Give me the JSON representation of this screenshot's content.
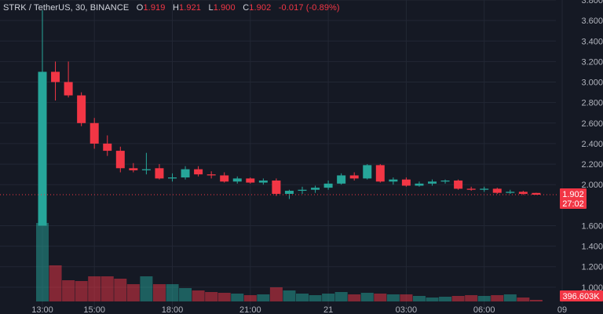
{
  "header": {
    "symbol": "STRK / TetherUS, 30, BINANCE",
    "o_label": "O",
    "o_val": "1.919",
    "h_label": "H",
    "h_val": "1.921",
    "l_label": "L",
    "l_val": "1.900",
    "c_label": "C",
    "c_val": "1.902",
    "change": "-0.017 (-0.89%)"
  },
  "badges": {
    "price": "1.902",
    "countdown": "27:02",
    "volume": "396.603K"
  },
  "colors": {
    "up": "#26a69a",
    "down": "#f23645",
    "bg": "#151924"
  },
  "chart_data": {
    "type": "candlestick",
    "ylim": [
      0.8,
      3.8
    ],
    "y_ticks": [
      "1.000",
      "1.200",
      "1.400",
      "1.600",
      "2.000",
      "2.200",
      "2.400",
      "2.600",
      "2.800",
      "3.000",
      "3.200",
      "3.400",
      "3.600",
      "3.800"
    ],
    "x_ticks": [
      {
        "label": "13:00",
        "index": 0
      },
      {
        "label": "15:00",
        "index": 4
      },
      {
        "label": "18:00",
        "index": 10
      },
      {
        "label": "21:00",
        "index": 16
      },
      {
        "label": "21",
        "index": 22
      },
      {
        "label": "03:00",
        "index": 28
      },
      {
        "label": "06:00",
        "index": 34
      },
      {
        "label": "09",
        "index": 40
      }
    ],
    "candles": [
      {
        "o": 1.6,
        "h": 3.7,
        "l": 1.6,
        "c": 3.1,
        "v": 1.0
      },
      {
        "o": 3.1,
        "h": 3.2,
        "l": 2.82,
        "c": 3.0,
        "v": 0.46
      },
      {
        "o": 3.0,
        "h": 3.2,
        "l": 2.85,
        "c": 2.87,
        "v": 0.27
      },
      {
        "o": 2.87,
        "h": 2.9,
        "l": 2.57,
        "c": 2.6,
        "v": 0.26
      },
      {
        "o": 2.6,
        "h": 2.65,
        "l": 2.35,
        "c": 2.4,
        "v": 0.32
      },
      {
        "o": 2.4,
        "h": 2.48,
        "l": 2.28,
        "c": 2.33,
        "v": 0.32
      },
      {
        "o": 2.33,
        "h": 2.37,
        "l": 2.12,
        "c": 2.16,
        "v": 0.29
      },
      {
        "o": 2.16,
        "h": 2.21,
        "l": 2.12,
        "c": 2.14,
        "v": 0.22
      },
      {
        "o": 2.14,
        "h": 2.31,
        "l": 2.1,
        "c": 2.15,
        "v": 0.32
      },
      {
        "o": 2.16,
        "h": 2.2,
        "l": 2.05,
        "c": 2.06,
        "v": 0.22
      },
      {
        "o": 2.06,
        "h": 2.11,
        "l": 2.03,
        "c": 2.07,
        "v": 0.22
      },
      {
        "o": 2.07,
        "h": 2.18,
        "l": 2.05,
        "c": 2.15,
        "v": 0.17
      },
      {
        "o": 2.15,
        "h": 2.18,
        "l": 2.08,
        "c": 2.1,
        "v": 0.14
      },
      {
        "o": 2.1,
        "h": 2.13,
        "l": 2.06,
        "c": 2.09,
        "v": 0.12
      },
      {
        "o": 2.09,
        "h": 2.12,
        "l": 2.02,
        "c": 2.03,
        "v": 0.11
      },
      {
        "o": 2.03,
        "h": 2.08,
        "l": 2.01,
        "c": 2.06,
        "v": 0.1
      },
      {
        "o": 2.06,
        "h": 2.07,
        "l": 2.01,
        "c": 2.02,
        "v": 0.08
      },
      {
        "o": 2.02,
        "h": 2.06,
        "l": 2.0,
        "c": 2.04,
        "v": 0.09
      },
      {
        "o": 2.04,
        "h": 2.06,
        "l": 1.89,
        "c": 1.91,
        "v": 0.18
      },
      {
        "o": 1.91,
        "h": 1.95,
        "l": 1.86,
        "c": 1.94,
        "v": 0.14
      },
      {
        "o": 1.94,
        "h": 1.98,
        "l": 1.91,
        "c": 1.95,
        "v": 0.1
      },
      {
        "o": 1.95,
        "h": 1.99,
        "l": 1.92,
        "c": 1.97,
        "v": 0.08
      },
      {
        "o": 1.97,
        "h": 2.04,
        "l": 1.95,
        "c": 2.01,
        "v": 0.1
      },
      {
        "o": 2.01,
        "h": 2.11,
        "l": 2.0,
        "c": 2.09,
        "v": 0.12
      },
      {
        "o": 2.09,
        "h": 2.12,
        "l": 2.04,
        "c": 2.06,
        "v": 0.09
      },
      {
        "o": 2.06,
        "h": 2.2,
        "l": 2.05,
        "c": 2.19,
        "v": 0.11
      },
      {
        "o": 2.19,
        "h": 2.2,
        "l": 2.02,
        "c": 2.03,
        "v": 0.1
      },
      {
        "o": 2.03,
        "h": 2.07,
        "l": 2.0,
        "c": 2.05,
        "v": 0.09
      },
      {
        "o": 2.05,
        "h": 2.07,
        "l": 1.98,
        "c": 1.99,
        "v": 0.09
      },
      {
        "o": 1.99,
        "h": 2.03,
        "l": 1.98,
        "c": 2.01,
        "v": 0.07
      },
      {
        "o": 2.01,
        "h": 2.05,
        "l": 1.99,
        "c": 2.03,
        "v": 0.05
      },
      {
        "o": 2.03,
        "h": 2.05,
        "l": 2.01,
        "c": 2.04,
        "v": 0.06
      },
      {
        "o": 2.04,
        "h": 2.05,
        "l": 1.95,
        "c": 1.96,
        "v": 0.07
      },
      {
        "o": 1.96,
        "h": 1.98,
        "l": 1.94,
        "c": 1.95,
        "v": 0.08
      },
      {
        "o": 1.95,
        "h": 1.98,
        "l": 1.93,
        "c": 1.96,
        "v": 0.07
      },
      {
        "o": 1.96,
        "h": 1.97,
        "l": 1.91,
        "c": 1.92,
        "v": 0.08
      },
      {
        "o": 1.92,
        "h": 1.95,
        "l": 1.91,
        "c": 1.93,
        "v": 0.09
      },
      {
        "o": 1.93,
        "h": 1.94,
        "l": 1.9,
        "c": 1.91,
        "v": 0.05
      },
      {
        "o": 1.919,
        "h": 1.921,
        "l": 1.9,
        "c": 1.902,
        "v": 0.02
      }
    ],
    "current_price": 1.902
  }
}
